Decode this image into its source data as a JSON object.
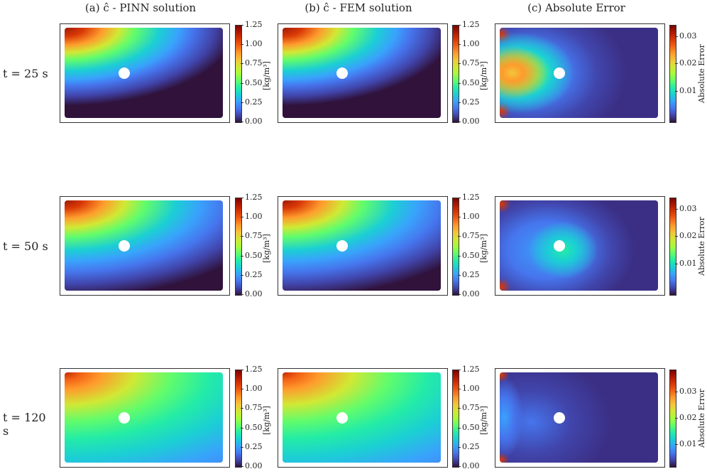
{
  "columns": [
    {
      "title": "(a) ĉ - PINN solution"
    },
    {
      "title": "(b) ĉ - FEM solution"
    },
    {
      "title": "(c) Absolute Error"
    }
  ],
  "rows": [
    {
      "label": "t = 25 s"
    },
    {
      "label": "t = 50 s"
    },
    {
      "label": "t = 120 s"
    }
  ],
  "colorbars": {
    "concentration": {
      "label": "[kg/m³]",
      "ticks": [
        "1.25",
        "1.00",
        "0.75",
        "0.50",
        "0.25",
        "0.00"
      ]
    },
    "error": [
      {
        "label": "Absolute Error",
        "ticks": [
          "0.03",
          "0.02",
          "0.01"
        ]
      },
      {
        "label": "Absolute Error",
        "ticks": [
          "0.03",
          "0.02",
          "0.01"
        ]
      },
      {
        "label": "Absolute Error",
        "ticks": [
          "0.03",
          "0.02",
          "0.01"
        ]
      }
    ]
  },
  "colormap": [
    "#30123b",
    "#4145ab",
    "#4675ed",
    "#39a2fc",
    "#1bcfd4",
    "#24eca6",
    "#61fc6c",
    "#a4fc3b",
    "#d1e834",
    "#f3c63a",
    "#fe9b2d",
    "#f36315",
    "#d93806",
    "#b11901",
    "#7a0402"
  ]
}
